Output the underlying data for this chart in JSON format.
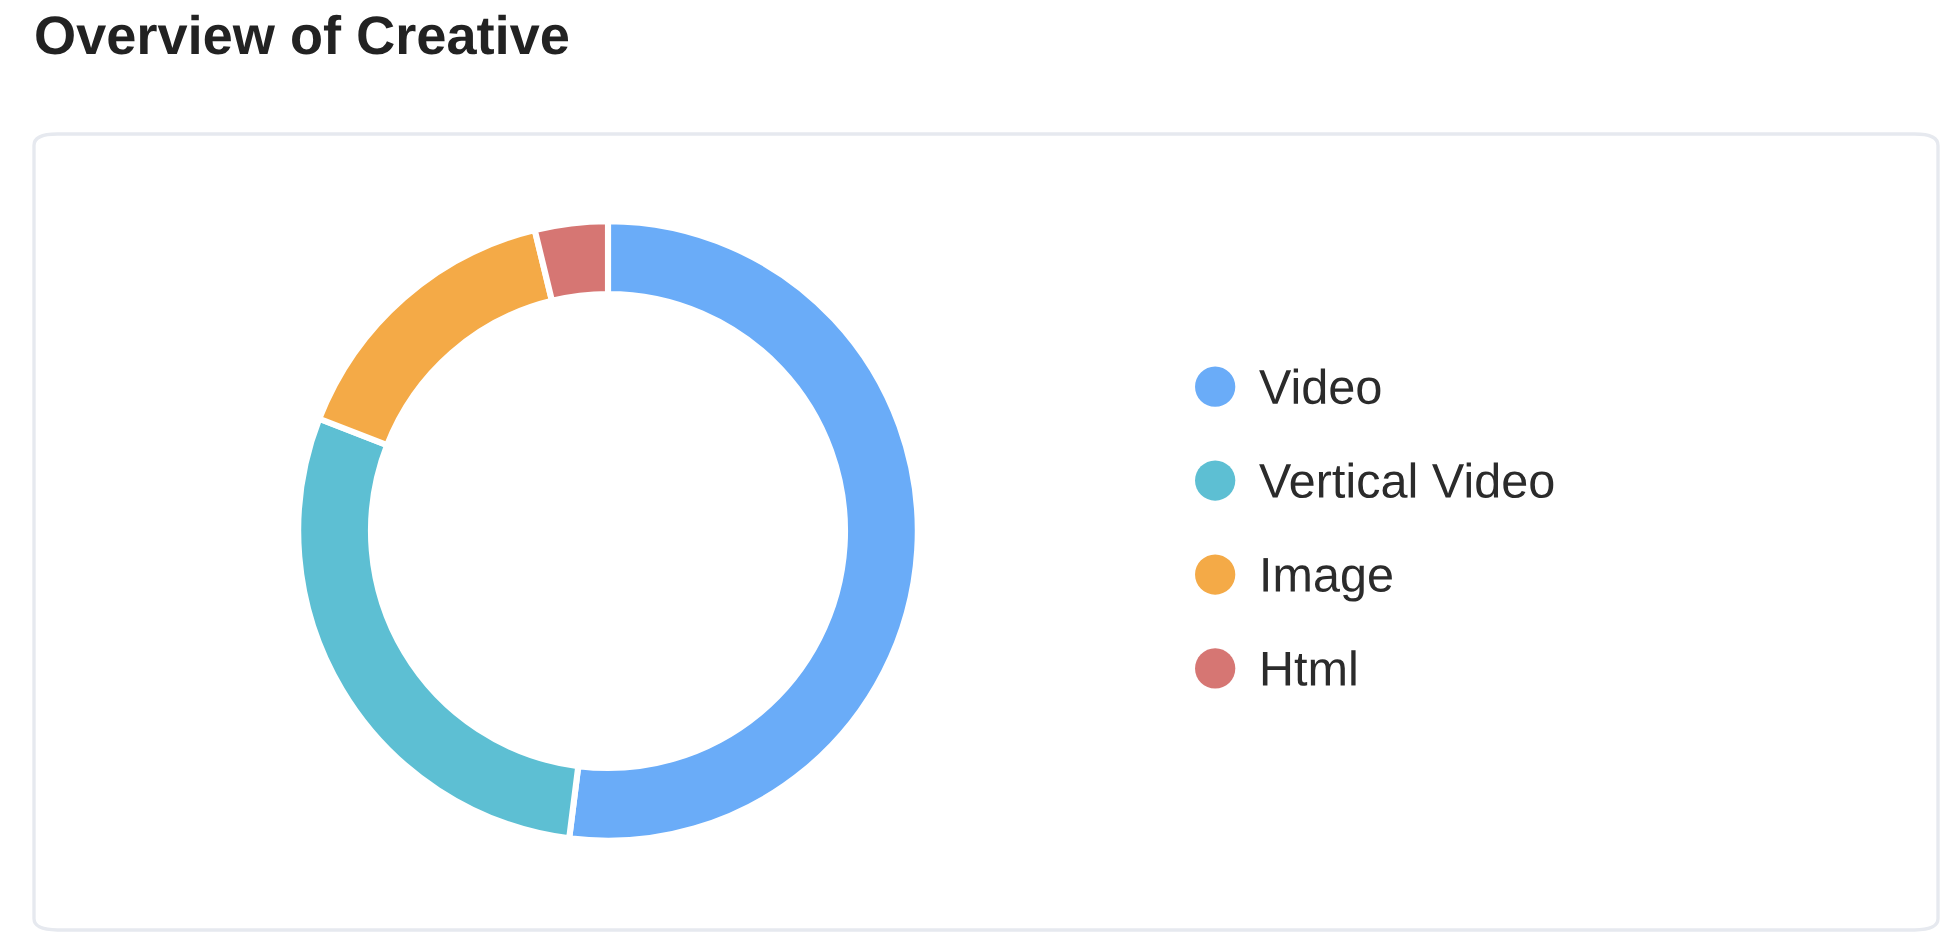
{
  "chart_data": {
    "type": "donut",
    "title": "Overview of Creative",
    "categories": [
      "Video",
      "Vertical Video",
      "Image",
      "Html"
    ],
    "values": [
      52.0,
      28.9,
      15.3,
      3.8
    ],
    "colors": [
      "#6aacf8",
      "#5dbfd3",
      "#f4aa47",
      "#d67673"
    ],
    "legend": "right"
  }
}
